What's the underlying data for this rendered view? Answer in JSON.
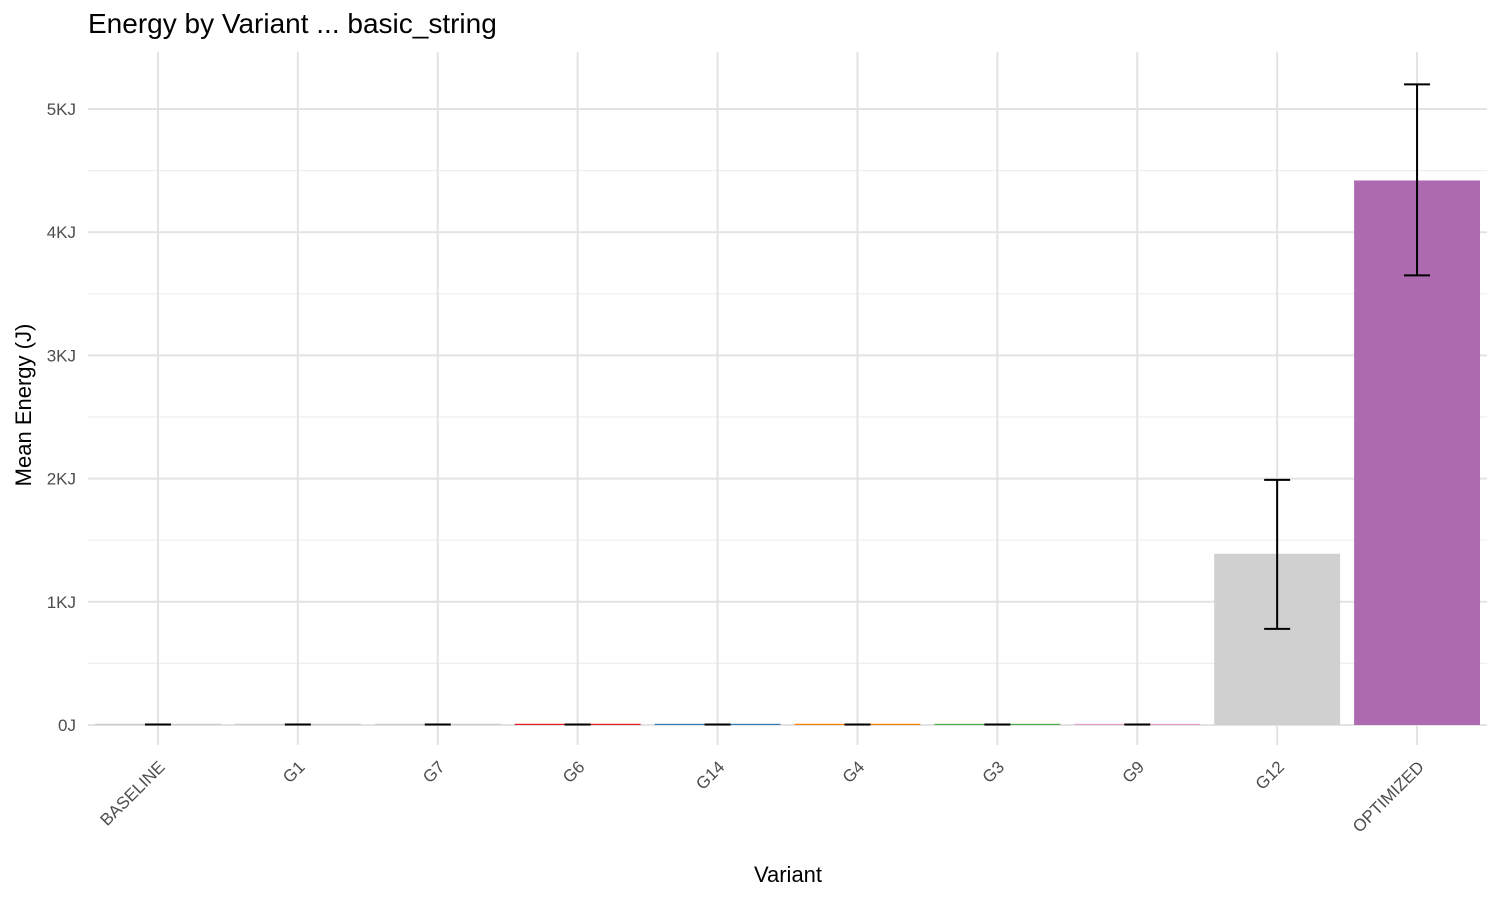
{
  "chart_data": {
    "type": "bar",
    "title": "Energy by Variant ... basic_string",
    "xlabel": "Variant",
    "ylabel": "Mean Energy (J)",
    "ylim": [
      -100,
      5450
    ],
    "yticks": [
      0,
      1000,
      2000,
      3000,
      4000,
      5000
    ],
    "ytick_labels": [
      "0J",
      "1KJ",
      "2KJ",
      "3KJ",
      "4KJ",
      "5KJ"
    ],
    "grid": true,
    "legend": "none",
    "categories": [
      "BASELINE",
      "G1",
      "G7",
      "G6",
      "G14",
      "G4",
      "G3",
      "G9",
      "G12",
      "OPTIMIZED"
    ],
    "values": [
      2,
      2,
      2,
      3,
      3,
      3,
      3,
      3,
      1390,
      4420
    ],
    "error_low": [
      0,
      0,
      0,
      0,
      0,
      0,
      0,
      0,
      780,
      3650
    ],
    "error_high": [
      4,
      4,
      4,
      6,
      6,
      6,
      6,
      6,
      1990,
      5200
    ],
    "colors": [
      "#cccccc",
      "#cccccc",
      "#cccccc",
      "#e41a1c",
      "#377eb8",
      "#ff7f00",
      "#4daf4a",
      "#e7a1c9",
      "#d0d0d0",
      "#ae6ab0"
    ]
  }
}
